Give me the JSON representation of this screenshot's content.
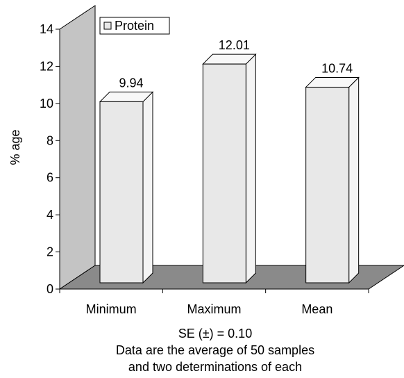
{
  "chart_data": {
    "type": "bar",
    "categories": [
      "Minimum",
      "Maximum",
      "Mean"
    ],
    "series": [
      {
        "name": "Protein",
        "values": [
          9.94,
          12.01,
          10.74
        ]
      }
    ],
    "data_labels": [
      "9.94",
      "12.01",
      "10.74"
    ],
    "ylabel": "% age",
    "ylim": [
      0,
      14
    ],
    "yticks": [
      0,
      2,
      4,
      6,
      8,
      10,
      12,
      14
    ],
    "grid": false,
    "legend": "top-left",
    "footnotes": [
      "SE (±) = 0.10",
      "Data are the average of 50 samples",
      "and two determinations of each"
    ],
    "colors": {
      "bar_front": "#e8e8e8",
      "bar_side": "#f4f4f4",
      "bar_top": "#f8f8f8",
      "back_wall": "#c4c4c4",
      "floor": "#8a8a8a"
    }
  }
}
